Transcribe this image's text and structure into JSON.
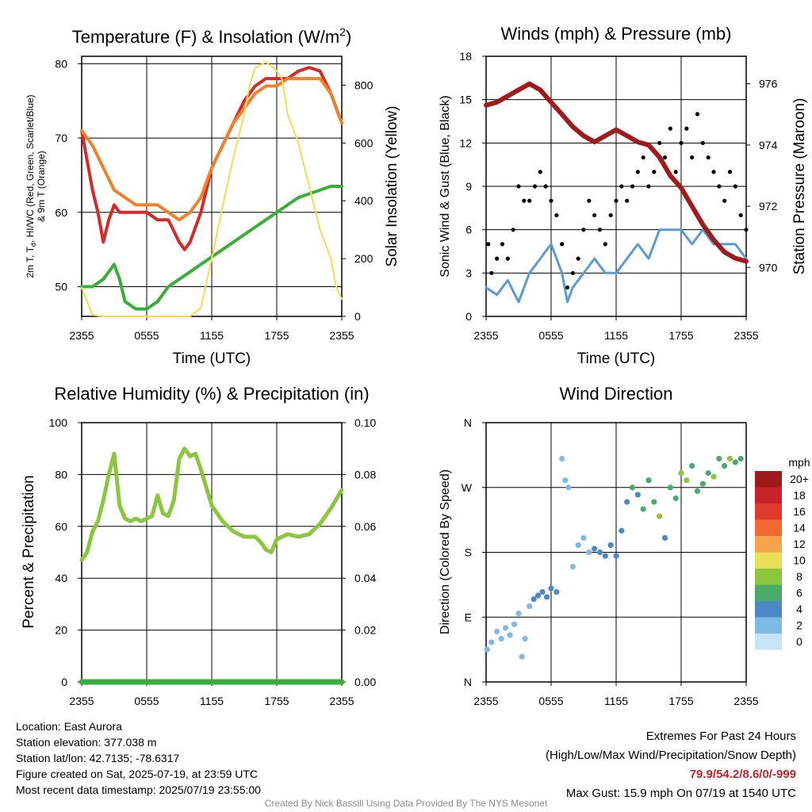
{
  "chart_data": [
    {
      "type": "line",
      "title": "Temperature (F) & Insolation (W/m",
      "title_sup": "2",
      "title_tail": ")",
      "xlabel": "Time (UTC)",
      "ylabel_line1": "2m T, T",
      "ylabel_sub": "d",
      "ylabel_line1_tail": ", HI/WC (Red, Green, Scarlet/Blue)",
      "ylabel_line2": "& 9m T (Orange)",
      "ylabel_right": "Solar Insolation (Yellow)",
      "x_ticks": [
        "2355",
        "0555",
        "1155",
        "1755",
        "2355"
      ],
      "ylim": [
        46,
        81
      ],
      "y_ticks": [
        50,
        60,
        70,
        80
      ],
      "ylim_right": [
        0,
        900
      ],
      "y_ticks_right": [
        0,
        200,
        400,
        600,
        800
      ],
      "x_hours": [
        0,
        24
      ],
      "series": [
        {
          "color": "#d42a2a",
          "x": [
            0,
            0.5,
            1,
            1.5,
            2,
            2.5,
            3,
            3.5,
            4,
            5,
            6,
            7,
            8,
            9,
            9.5,
            10,
            11,
            12,
            13,
            14,
            15,
            16,
            17,
            18,
            19,
            20,
            21,
            22,
            23,
            24
          ],
          "values": [
            71,
            67,
            63,
            60,
            56,
            59,
            61,
            60,
            60,
            60,
            60,
            59,
            59,
            56,
            55,
            56,
            60,
            66,
            69,
            72,
            75,
            77,
            78,
            78,
            78,
            79,
            79.5,
            79,
            76,
            72
          ]
        },
        {
          "color": "#f0802a",
          "x": [
            0,
            1,
            2,
            3,
            4,
            5,
            6,
            7,
            8,
            9,
            10,
            11,
            12,
            13,
            14,
            15,
            16,
            17,
            18,
            19,
            20,
            21,
            22,
            23,
            24
          ],
          "values": [
            71,
            69,
            66,
            63,
            62,
            61,
            61,
            61,
            60,
            59,
            60,
            62,
            66,
            69,
            72,
            74,
            76,
            77,
            77,
            78,
            78,
            78,
            78,
            76,
            72
          ]
        },
        {
          "color": "#3aae3a",
          "x": [
            0,
            1,
            2,
            3,
            3.5,
            4,
            5,
            6,
            7,
            8,
            9,
            10,
            11,
            12,
            13,
            14,
            15,
            16,
            17,
            18,
            19,
            20,
            21,
            22,
            23,
            24
          ],
          "values": [
            50,
            50,
            51,
            53,
            51,
            48,
            47,
            47,
            48,
            50,
            51,
            52,
            53,
            54,
            55,
            56,
            57,
            58,
            59,
            60,
            61,
            62,
            62.5,
            63,
            63.5,
            63.5
          ]
        },
        {
          "color": "#f5dc50",
          "y_axis": "right",
          "x": [
            0,
            1,
            2,
            3,
            4,
            5,
            6,
            7,
            8,
            9,
            10,
            11,
            12,
            13,
            14,
            15,
            15.5,
            16,
            17,
            18,
            18.5,
            19,
            20,
            21,
            22,
            23,
            23.5,
            24
          ],
          "values": [
            100,
            5,
            0,
            0,
            0,
            0,
            0,
            0,
            0,
            0,
            0,
            30,
            200,
            380,
            550,
            700,
            800,
            860,
            880,
            850,
            820,
            700,
            600,
            450,
            300,
            200,
            100,
            60
          ]
        }
      ]
    },
    {
      "type": "scatter",
      "title": "Winds (mph) & Pressure (mb)",
      "xlabel": "Time (UTC)",
      "ylabel": "Sonic Wind & Gust (Blue, Black)",
      "ylabel_right": "Station Pressure (Maroon)",
      "x_ticks": [
        "2355",
        "0555",
        "1155",
        "1755",
        "2355"
      ],
      "ylim": [
        0,
        18
      ],
      "y_ticks": [
        0,
        3,
        6,
        9,
        12,
        15,
        18
      ],
      "ylim_right": [
        968.4,
        976.9
      ],
      "y_ticks_right": [
        970,
        972,
        974,
        976
      ],
      "series": [
        {
          "name": "",
          "kind": "line",
          "color": "#5b9bd5",
          "x": [
            0,
            1,
            2,
            3,
            4,
            5,
            6,
            7,
            7.5,
            8,
            9,
            10,
            11,
            12,
            13,
            14,
            15,
            16,
            17,
            18,
            19,
            20,
            21,
            22,
            23,
            24
          ],
          "values": [
            2,
            1.5,
            2.5,
            1,
            3,
            4,
            5,
            3,
            1,
            2,
            3,
            4,
            3,
            3,
            4,
            5,
            4,
            6,
            6,
            6,
            5,
            6,
            5,
            5,
            5,
            4
          ]
        },
        {
          "name": "",
          "kind": "points",
          "color": "#000000",
          "x": [
            0.2,
            0.5,
            1,
            1.5,
            2,
            2.5,
            3,
            3.5,
            4,
            4.5,
            5,
            5.5,
            6,
            6.5,
            7,
            7.5,
            8,
            8.5,
            9,
            9.5,
            10,
            10.5,
            11,
            11.5,
            12,
            12.5,
            13,
            13.5,
            14,
            14.5,
            15,
            15.5,
            16,
            16.5,
            17,
            17.5,
            18,
            18.5,
            19,
            19.5,
            20,
            20.5,
            21,
            21.5,
            22,
            22.5,
            23,
            23.5,
            24
          ],
          "values": [
            5,
            3,
            4,
            5,
            4,
            6,
            9,
            8,
            8,
            9,
            10,
            9,
            8,
            7,
            5,
            2,
            3,
            4,
            6,
            8,
            7,
            6,
            5,
            7,
            8,
            9,
            8,
            9,
            10,
            11,
            9,
            10,
            12,
            11,
            13,
            10,
            12,
            13,
            11,
            14,
            12,
            11,
            10,
            9,
            8,
            10,
            9,
            7,
            6
          ]
        },
        {
          "name": "",
          "kind": "line",
          "color": "#a01c1c",
          "y_axis": "right",
          "x": [
            0,
            1,
            2,
            3,
            4,
            5,
            6,
            7,
            8,
            9,
            10,
            11,
            12,
            13,
            14,
            15,
            16,
            17,
            18,
            19,
            20,
            21,
            22,
            23,
            24
          ],
          "values": [
            975.3,
            975.4,
            975.6,
            975.8,
            976.0,
            975.8,
            975.4,
            975.0,
            974.6,
            974.3,
            974.1,
            974.3,
            974.5,
            974.3,
            974.1,
            974.0,
            973.6,
            973.0,
            972.6,
            972.0,
            971.4,
            970.9,
            970.5,
            970.3,
            970.2
          ]
        }
      ]
    },
    {
      "type": "line",
      "title": "Relative Humidity (%) & Precipitation (in)",
      "ylabel": "Percent & Precipitation",
      "x_ticks": [
        "2355",
        "0555",
        "1155",
        "1755",
        "2355"
      ],
      "ylim": [
        0,
        100
      ],
      "y_ticks": [
        0,
        20,
        40,
        60,
        80,
        100
      ],
      "ylim_right": [
        0,
        0.1
      ],
      "y_ticks_right": [
        "0.00",
        "0.02",
        "0.04",
        "0.06",
        "0.08",
        "0.10"
      ],
      "series": [
        {
          "color": "#8cc63f",
          "x": [
            0,
            0.5,
            1,
            1.5,
            2,
            2.5,
            3,
            3.5,
            4,
            4.5,
            5,
            5.5,
            6,
            6.5,
            7,
            7.5,
            8,
            8.5,
            9,
            9.5,
            10,
            10.5,
            11,
            11.5,
            12,
            13,
            14,
            15,
            16,
            16.5,
            17,
            17.5,
            18,
            19,
            20,
            21,
            22,
            23,
            24
          ],
          "values": [
            47,
            50,
            58,
            62,
            70,
            80,
            88,
            68,
            63,
            62,
            63,
            62,
            63,
            64,
            72,
            65,
            64,
            70,
            86,
            90,
            87,
            88,
            82,
            75,
            68,
            62,
            58,
            56,
            56,
            54,
            51,
            50,
            55,
            57,
            56,
            57,
            61,
            67,
            74
          ]
        },
        {
          "color": "#3aae3a",
          "y_axis": "right",
          "x": [
            0,
            24
          ],
          "values": [
            0,
            0
          ]
        }
      ]
    },
    {
      "type": "scatter",
      "title": "Wind Direction",
      "ylabel": "Direction (Colored By Speed)",
      "x_ticks": [
        "2355",
        "0555",
        "1155",
        "1755",
        "2355"
      ],
      "y_ticks": [
        "N",
        "E",
        "S",
        "W",
        "N"
      ],
      "ylim": [
        0,
        360
      ],
      "legend_title": "mph",
      "legend_labels": [
        "20+",
        "18",
        "16",
        "14",
        "12",
        "10",
        "8",
        "6",
        "4",
        "2",
        "0"
      ],
      "legend_colors": [
        "#a01c1c",
        "#c8222a",
        "#e03a2e",
        "#f26a30",
        "#f7a44a",
        "#e8e05a",
        "#8cc63f",
        "#4aaa6a",
        "#4a89c4",
        "#7fb9e6",
        "#c6e4f7"
      ],
      "points": [
        {
          "x": 0.1,
          "dir": 45,
          "spd": 2
        },
        {
          "x": 0.5,
          "dir": 55,
          "spd": 2
        },
        {
          "x": 1,
          "dir": 70,
          "spd": 2
        },
        {
          "x": 1.4,
          "dir": 60,
          "spd": 1
        },
        {
          "x": 1.8,
          "dir": 75,
          "spd": 2
        },
        {
          "x": 2.2,
          "dir": 65,
          "spd": 2
        },
        {
          "x": 2.6,
          "dir": 80,
          "spd": 1
        },
        {
          "x": 3,
          "dir": 95,
          "spd": 2
        },
        {
          "x": 3.3,
          "dir": 35,
          "spd": 1
        },
        {
          "x": 3.6,
          "dir": 60,
          "spd": 2
        },
        {
          "x": 4,
          "dir": 105,
          "spd": 2
        },
        {
          "x": 4.4,
          "dir": 115,
          "spd": 3
        },
        {
          "x": 4.8,
          "dir": 120,
          "spd": 4
        },
        {
          "x": 5.2,
          "dir": 125,
          "spd": 4
        },
        {
          "x": 5.6,
          "dir": 118,
          "spd": 3
        },
        {
          "x": 6,
          "dir": 130,
          "spd": 4
        },
        {
          "x": 6.5,
          "dir": 125,
          "spd": 3
        },
        {
          "x": 7,
          "dir": 310,
          "spd": 1
        },
        {
          "x": 7.3,
          "dir": 280,
          "spd": 1
        },
        {
          "x": 7.6,
          "dir": 270,
          "spd": 1
        },
        {
          "x": 8,
          "dir": 160,
          "spd": 2
        },
        {
          "x": 8.5,
          "dir": 190,
          "spd": 2
        },
        {
          "x": 9,
          "dir": 200,
          "spd": 1
        },
        {
          "x": 9.5,
          "dir": 180,
          "spd": 2
        },
        {
          "x": 10,
          "dir": 185,
          "spd": 3
        },
        {
          "x": 10.5,
          "dir": 180,
          "spd": 4
        },
        {
          "x": 11,
          "dir": 175,
          "spd": 4
        },
        {
          "x": 11.5,
          "dir": 190,
          "spd": 3
        },
        {
          "x": 12,
          "dir": 175,
          "spd": 4
        },
        {
          "x": 12.5,
          "dir": 210,
          "spd": 4
        },
        {
          "x": 13,
          "dir": 250,
          "spd": 4
        },
        {
          "x": 13.5,
          "dir": 270,
          "spd": 5
        },
        {
          "x": 14,
          "dir": 260,
          "spd": 4
        },
        {
          "x": 14.5,
          "dir": 240,
          "spd": 6
        },
        {
          "x": 15,
          "dir": 280,
          "spd": 6
        },
        {
          "x": 15.5,
          "dir": 250,
          "spd": 6
        },
        {
          "x": 16,
          "dir": 230,
          "spd": 7
        },
        {
          "x": 16.5,
          "dir": 200,
          "spd": 4
        },
        {
          "x": 17,
          "dir": 270,
          "spd": 5
        },
        {
          "x": 17.5,
          "dir": 255,
          "spd": 6
        },
        {
          "x": 18,
          "dir": 290,
          "spd": 8
        },
        {
          "x": 18.5,
          "dir": 280,
          "spd": 7
        },
        {
          "x": 19,
          "dir": 300,
          "spd": 6
        },
        {
          "x": 19.5,
          "dir": 265,
          "spd": 5
        },
        {
          "x": 20,
          "dir": 275,
          "spd": 5
        },
        {
          "x": 20.5,
          "dir": 290,
          "spd": 6
        },
        {
          "x": 21,
          "dir": 285,
          "spd": 7
        },
        {
          "x": 21.5,
          "dir": 310,
          "spd": 6
        },
        {
          "x": 22,
          "dir": 300,
          "spd": 5
        },
        {
          "x": 22.5,
          "dir": 310,
          "spd": 7
        },
        {
          "x": 23,
          "dir": 305,
          "spd": 6
        },
        {
          "x": 23.5,
          "dir": 310,
          "spd": 6
        }
      ]
    }
  ],
  "footer": {
    "location": "Location: East Aurora",
    "elevation": "Station elevation: 377.038 m",
    "latlon": "Station lat/lon: 42.7135; -78.6317",
    "created": "Figure created on Sat, 2025-07-19, at 23:59 UTC",
    "recent": "Most recent data timestamp: 2025/07/19 23:55:00",
    "extremes_title": "Extremes For Past 24 Hours",
    "extremes_fields": "(High/Low/Max Wind/Precipitation/Snow Depth)",
    "extremes_values": "79.9/54.2/8.6/0/-999",
    "max_gust": "Max Gust: 15.9 mph On 07/19 at 1540 UTC",
    "credit": "Created By Nick Bassill Using Data Provided By The NYS Mesonet"
  }
}
